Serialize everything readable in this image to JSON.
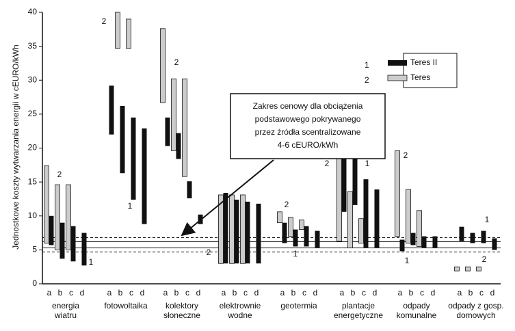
{
  "chart_data": {
    "type": "floating-bar",
    "y_label": "Jednostkowe koszty wytwarzania energii w cEURO/kWh",
    "ylim": [
      0,
      40
    ],
    "yticks": [
      0,
      5,
      10,
      15,
      20,
      25,
      30,
      35,
      40
    ],
    "subcategories": [
      "a",
      "b",
      "c",
      "d"
    ],
    "categories": [
      [
        "energia",
        "wiatru"
      ],
      [
        "fotowoltaika"
      ],
      [
        "kolektory",
        "słoneczne"
      ],
      [
        "elektrownie",
        "wodne"
      ],
      [
        "geotermia"
      ],
      [
        "plantacje",
        "energetyczne"
      ],
      [
        "odpady",
        "komunalne"
      ],
      [
        "odpady z gosp.",
        "domowych"
      ]
    ],
    "series": [
      {
        "name": "Teres II",
        "legend_number": "1",
        "color": "#111111",
        "values": [
          [
            [
              5.7,
              10
            ],
            [
              3.7,
              9
            ],
            [
              3.3,
              8.5
            ],
            [
              2.7,
              7.5
            ]
          ],
          [
            [
              22,
              29.2
            ],
            [
              16.3,
              26.2
            ],
            [
              12.4,
              24.5
            ],
            [
              8.8,
              22.9
            ]
          ],
          [
            [
              20.3,
              24.5
            ],
            [
              18.4,
              22.2
            ],
            [
              12.6,
              15.1
            ],
            [
              8.8,
              10.2
            ]
          ],
          [
            [
              3,
              13.4
            ],
            [
              3,
              12.4
            ],
            [
              3,
              12.1
            ],
            [
              3,
              11.8
            ]
          ],
          [
            [
              6,
              9
            ],
            [
              5.5,
              8
            ],
            [
              5.5,
              8.5
            ],
            [
              5.3,
              7.8
            ]
          ],
          [
            [
              10.6,
              19.1
            ],
            [
              11.6,
              18.4
            ],
            [
              5.3,
              15.4
            ],
            [
              5.3,
              13.9
            ]
          ],
          [
            [
              4.8,
              6.5
            ],
            [
              5.7,
              7.5
            ],
            [
              5.3,
              7
            ],
            [
              5.3,
              7
            ]
          ],
          [
            [
              6.3,
              8.4
            ],
            [
              6,
              7.5
            ],
            [
              6,
              7.8
            ],
            [
              5,
              6.7
            ]
          ]
        ]
      },
      {
        "name": "Teres",
        "legend_number": "2",
        "color": "#cccccc",
        "values": [
          [
            [
              6,
              17.4
            ],
            [
              5,
              14.6
            ],
            [
              5,
              14.6
            ],
            null
          ],
          [
            null,
            [
              34.7,
              40
            ],
            [
              34.7,
              39
            ],
            null
          ],
          [
            [
              26.7,
              37.6
            ],
            [
              19.6,
              30.2
            ],
            [
              15.8,
              30.2
            ],
            null
          ],
          [
            [
              3,
              13.1
            ],
            [
              3,
              13.1
            ],
            [
              3,
              13.1
            ],
            null
          ],
          [
            [
              9,
              10.6
            ],
            [
              7,
              9.8
            ],
            [
              8,
              9.4
            ],
            null
          ],
          [
            [
              6.3,
              18.6
            ],
            [
              5.3,
              13.6
            ],
            [
              6,
              9.6
            ],
            null
          ],
          [
            [
              7,
              19.6
            ],
            [
              6,
              13.9
            ],
            [
              5.5,
              10.8
            ],
            null
          ],
          [
            [
              1.9,
              2.5
            ],
            [
              1.9,
              2.5
            ],
            [
              1.9,
              2.5
            ],
            null
          ]
        ]
      }
    ],
    "reference_lines_dashed": [
      4.7,
      6.8
    ],
    "reference_lines_solid": [
      5.3,
      6.2
    ],
    "callout": [
      "Zakres cenowy dla obciążenia",
      "podstawowego pokrywanego",
      "przez źródła scentralizowane",
      "4-6 cEURO/kWh"
    ],
    "annotations": [
      "2",
      "2",
      "1",
      "2",
      "1",
      "2",
      "2",
      "1",
      "2",
      "1",
      "2",
      "1",
      "1",
      "2"
    ]
  }
}
